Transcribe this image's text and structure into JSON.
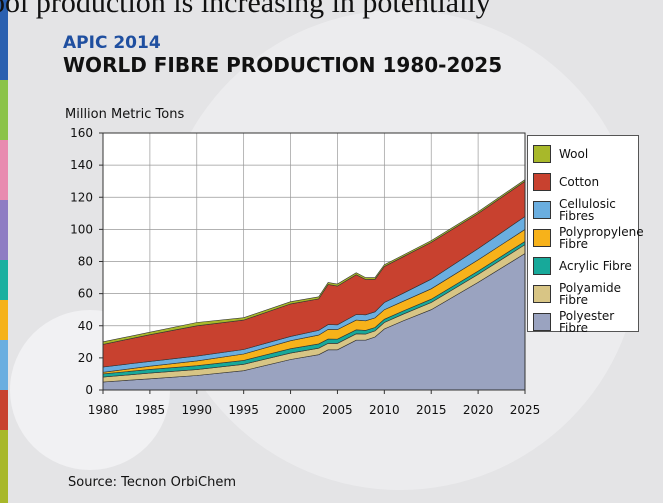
{
  "chart_data": {
    "type": "stacked_area",
    "header": "ool production is increasing in potentially",
    "supertitle": "APIC 2014",
    "title": "WORLD FIBRE PRODUCTION 1980-2025",
    "y_label": "Million Metric Tons",
    "source": "Source: Tecnon OrbiChem",
    "x": [
      1980,
      1985,
      1990,
      1995,
      2000,
      2003,
      2004,
      2005,
      2007,
      2008,
      2009,
      2010,
      2012,
      2015,
      2020,
      2025
    ],
    "series": [
      {
        "name": "Polyester Fibre",
        "color": "#9aa3c0",
        "values": [
          5,
          7,
          9,
          12,
          19,
          22,
          25,
          25,
          31,
          31,
          33,
          38,
          43,
          50,
          67,
          85
        ]
      },
      {
        "name": "Polyamide Fibre",
        "color": "#d8c585",
        "values": [
          3,
          3.5,
          3.7,
          4,
          4,
          4,
          4,
          4,
          4,
          3.8,
          3.8,
          4,
          4.2,
          4.5,
          5,
          5.5
        ]
      },
      {
        "name": "Acrylic Fibre",
        "color": "#17a99a",
        "values": [
          2,
          2.3,
          2.4,
          2.4,
          2.7,
          2.7,
          2.7,
          2.6,
          2.5,
          2.3,
          2.1,
          2,
          2,
          2,
          2,
          2
        ]
      },
      {
        "name": "Polypropylene Fibre",
        "color": "#f7b21a",
        "values": [
          1,
          2,
          3,
          4,
          5,
          5.5,
          6,
          6,
          6,
          6,
          6,
          6,
          6,
          6.5,
          7,
          7.5
        ]
      },
      {
        "name": "Cellulosic Fibres",
        "color": "#6aaee0",
        "values": [
          3.3,
          3,
          3,
          2.8,
          2.7,
          2.9,
          3,
          3,
          3.5,
          3.7,
          3.8,
          4.5,
          5,
          6,
          7,
          8
        ]
      },
      {
        "name": "Cotton",
        "color": "#c8412f",
        "values": [
          14.1,
          16.6,
          18.9,
          18.3,
          20.2,
          19.6,
          25,
          24.1,
          24.8,
          22,
          20.2,
          22.4,
          22.7,
          22.9,
          21.9,
          21.9
        ]
      },
      {
        "name": "Wool",
        "color": "#a8b82a",
        "values": [
          1.6,
          1.6,
          2,
          1.5,
          1.4,
          1.3,
          1.3,
          1.3,
          1.2,
          1.2,
          1.1,
          1.1,
          1.1,
          1.1,
          1.1,
          1.1
        ]
      }
    ],
    "xlim": [
      1980,
      2025
    ],
    "xticks": [
      1980,
      1985,
      1990,
      1995,
      2000,
      2005,
      2010,
      2015,
      2020,
      2025
    ],
    "ylim": [
      0,
      160
    ],
    "yticks": [
      0,
      20,
      40,
      60,
      80,
      100,
      120,
      140,
      160
    ],
    "grid": true,
    "legend": "right"
  }
}
